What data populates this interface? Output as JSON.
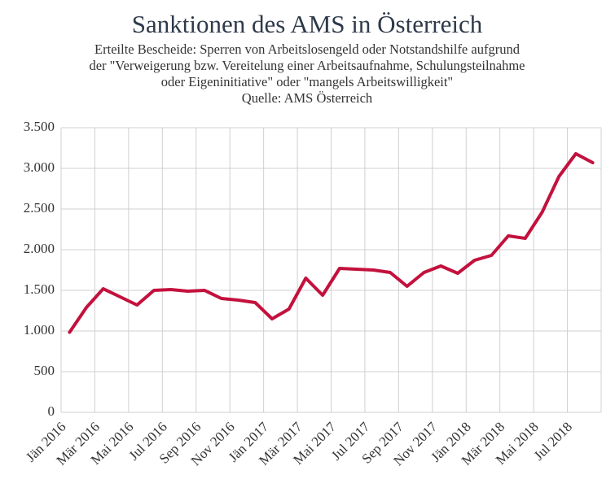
{
  "chart_data": {
    "type": "line",
    "title": "Sanktionen des AMS in Österreich",
    "subtitle": [
      "Erteilte Bescheide: Sperren von Arbeitslosengeld oder Notstandshilfe aufgrund",
      "der \"Verweigerung bzw. Vereitelung einer Arbeitsaufnahme, Schulungsteilnahme",
      "oder Eigeninitiative\" oder \"mangels Arbeitswilligkeit\"",
      "Quelle: AMS Österreich"
    ],
    "categories": [
      "Jän 2016",
      null,
      "Mär 2016",
      null,
      "Mai 2016",
      null,
      "Jul 2016",
      null,
      "Sep 2016",
      null,
      "Nov 2016",
      null,
      "Jän 2017",
      null,
      "Mär 2017",
      null,
      "Mai 2017",
      null,
      "Jul 2017",
      null,
      "Sep 2017",
      null,
      "Nov 2017",
      null,
      "Jän 2018",
      null,
      "Mär 2018",
      null,
      "Mai 2018",
      null,
      "Jul 2018",
      null
    ],
    "values": [
      985,
      1290,
      1520,
      1420,
      1320,
      1500,
      1510,
      1490,
      1500,
      1400,
      1380,
      1350,
      1150,
      1270,
      1650,
      1440,
      1770,
      1760,
      1750,
      1720,
      1550,
      1720,
      1800,
      1710,
      1870,
      1930,
      2170,
      2140,
      2460,
      2900,
      3180,
      3070
    ],
    "color": "#c3113d",
    "ylim": [
      0,
      3500
    ],
    "yticks": [
      0,
      {
        "value": 500,
        "label": "500"
      },
      {
        "value": 1000,
        "label": "1.000"
      },
      {
        "value": 1500,
        "label": "1.500"
      },
      {
        "value": 2000,
        "label": "2.000"
      },
      {
        "value": 2500,
        "label": "2.500"
      },
      {
        "value": 3000,
        "label": "3.000"
      },
      {
        "value": 3500,
        "label": "3.500"
      }
    ],
    "grid": true
  }
}
